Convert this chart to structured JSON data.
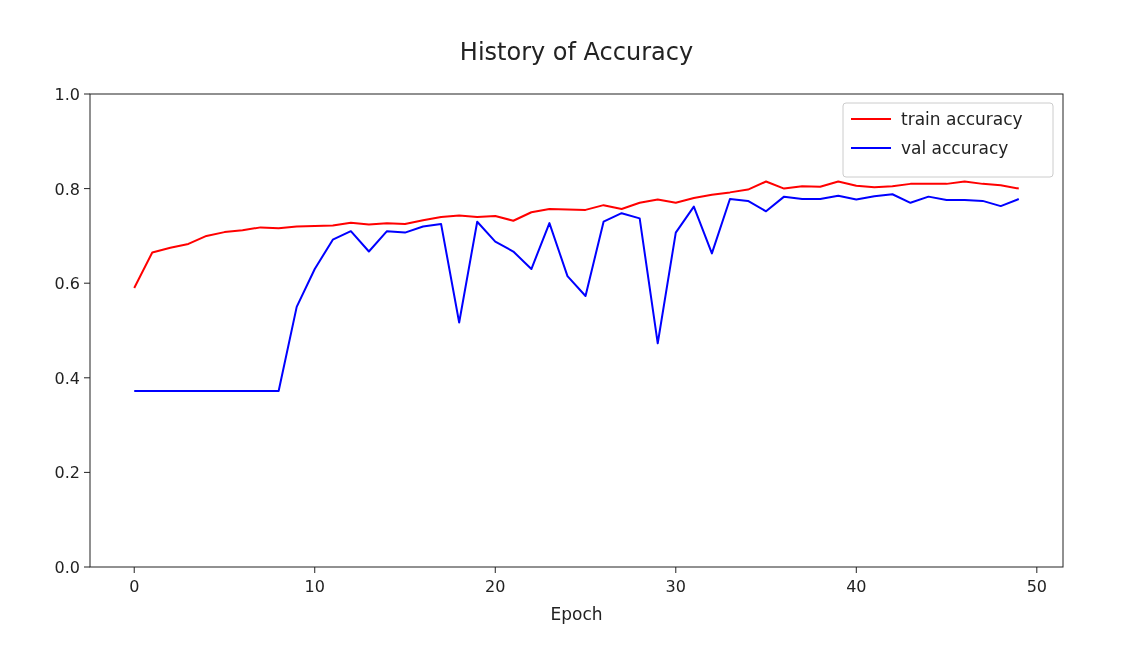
{
  "chart_data": {
    "type": "line",
    "title": "History of Accuracy",
    "xlabel": "Epoch",
    "x": [
      0,
      1,
      2,
      3,
      4,
      5,
      6,
      7,
      8,
      9,
      10,
      11,
      12,
      13,
      14,
      15,
      16,
      17,
      18,
      19,
      20,
      21,
      22,
      23,
      24,
      25,
      26,
      27,
      28,
      29,
      30,
      31,
      32,
      33,
      34,
      35,
      36,
      37,
      38,
      39,
      40,
      41,
      42,
      43,
      44,
      45,
      46,
      47,
      48,
      49
    ],
    "series": [
      {
        "name": "train accuracy",
        "color": "#ff0000",
        "values": [
          0.59,
          0.665,
          0.675,
          0.683,
          0.7,
          0.708,
          0.712,
          0.718,
          0.716,
          0.72,
          0.721,
          0.722,
          0.728,
          0.724,
          0.727,
          0.725,
          0.733,
          0.74,
          0.743,
          0.74,
          0.742,
          0.732,
          0.75,
          0.757,
          0.756,
          0.755,
          0.765,
          0.757,
          0.77,
          0.777,
          0.77,
          0.78,
          0.787,
          0.792,
          0.798,
          0.815,
          0.8,
          0.805,
          0.804,
          0.815,
          0.806,
          0.803,
          0.805,
          0.81,
          0.81,
          0.81,
          0.815,
          0.81,
          0.807,
          0.8
        ]
      },
      {
        "name": "val accuracy",
        "color": "#0000ff",
        "values": [
          0.372,
          0.372,
          0.372,
          0.372,
          0.372,
          0.372,
          0.372,
          0.372,
          0.372,
          0.55,
          0.63,
          0.692,
          0.71,
          0.667,
          0.71,
          0.707,
          0.72,
          0.725,
          0.517,
          0.73,
          0.688,
          0.667,
          0.63,
          0.727,
          0.615,
          0.573,
          0.73,
          0.748,
          0.737,
          0.473,
          0.707,
          0.762,
          0.663,
          0.778,
          0.774,
          0.752,
          0.783,
          0.778,
          0.778,
          0.785,
          0.777,
          0.784,
          0.788,
          0.77,
          0.783,
          0.776,
          0.776,
          0.774,
          0.763,
          0.778
        ]
      }
    ],
    "xlim": [
      -2.45,
      51.45
    ],
    "xticks": [
      0,
      10,
      20,
      30,
      40,
      50
    ],
    "ylim": [
      0,
      1
    ],
    "yticks": [
      {
        "value": 0,
        "label": "0.0"
      },
      {
        "value": 0.2,
        "label": "0.2"
      },
      {
        "value": 0.4,
        "label": "0.4"
      },
      {
        "value": 0.6,
        "label": "0.6"
      },
      {
        "value": 0.8,
        "label": "0.8"
      },
      {
        "value": 1,
        "label": "1.0"
      }
    ],
    "legend": "top right",
    "grid": false
  }
}
